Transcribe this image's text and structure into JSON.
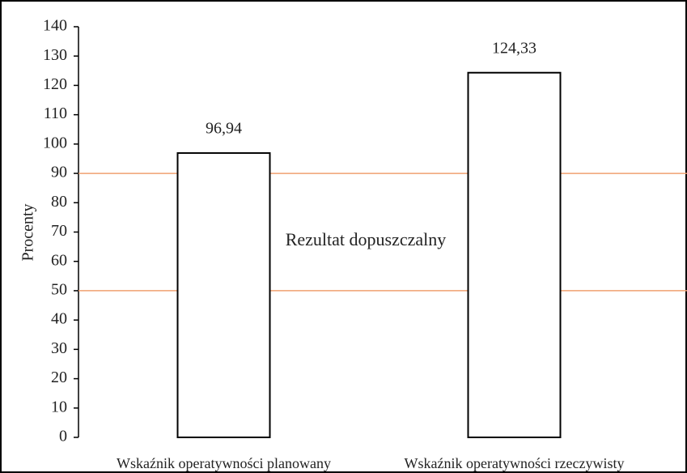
{
  "chart_data": {
    "type": "bar",
    "y_label": "Procenty",
    "categories": [
      "Wskaźnik operatywności planowany",
      "Wskaźnik operatywności rzeczywisty"
    ],
    "values": [
      96.94,
      124.33
    ],
    "value_labels": [
      "96,94",
      "124,33"
    ],
    "color": "#ffffff",
    "edge_color": "#000000",
    "ylim": [
      0,
      140
    ],
    "yticks": [
      0,
      10,
      20,
      30,
      40,
      50,
      60,
      70,
      80,
      90,
      100,
      110,
      120,
      130,
      140
    ],
    "reference_lines": [
      {
        "value": 90,
        "color": "#f0a070"
      },
      {
        "value": 50,
        "color": "#f0a070"
      }
    ],
    "annotation": "Rezultat dopuszczalny"
  }
}
